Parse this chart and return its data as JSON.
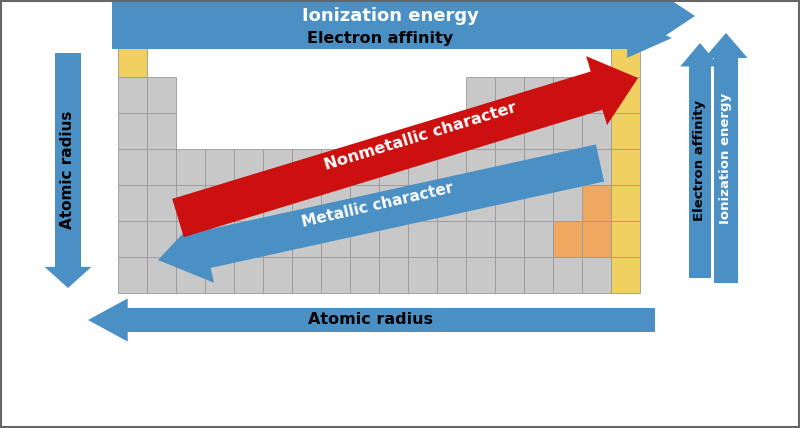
{
  "bg_color": "#ffffff",
  "grid_color_gray": "#c8c8c8",
  "grid_color_yellow": "#f0d060",
  "grid_color_orange": "#f0a860",
  "arrow_blue": "#4a90c4",
  "arrow_red": "#cc1010",
  "top_arrow1_text": "Ionization energy",
  "top_arrow2_text": "Electron affinity",
  "left_arrow_text": "Atomic radius",
  "bottom_arrow_text": "Atomic radius",
  "right_arrow1_text": "Electron affinity",
  "right_arrow2_text": "Ionization energy",
  "diagonal_red_text": "Nonmetallic character",
  "diagonal_blue_text": "Metallic character",
  "fig_w": 8.0,
  "fig_h": 4.28,
  "dpi": 100
}
